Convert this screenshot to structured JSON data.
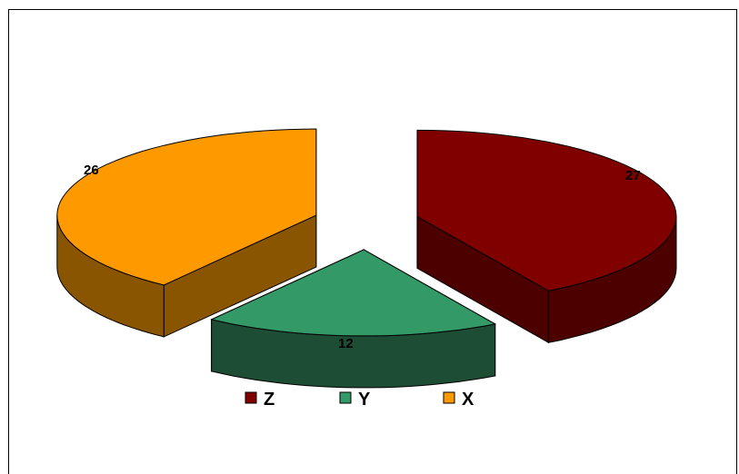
{
  "chart_data": {
    "type": "pie",
    "style": "3d-exploded",
    "slices": [
      {
        "label": "Z",
        "value": 27,
        "color": "#800000",
        "color_side": "#4d0000"
      },
      {
        "label": "Y",
        "value": 12,
        "color": "#339966",
        "color_side": "#1e4d36"
      },
      {
        "label": "X",
        "value": 26,
        "color": "#ff9900",
        "color_side": "#8a5500"
      }
    ],
    "legend": {
      "position": "bottom",
      "items": [
        "Z",
        "Y",
        "X"
      ]
    },
    "data_labels": true
  }
}
